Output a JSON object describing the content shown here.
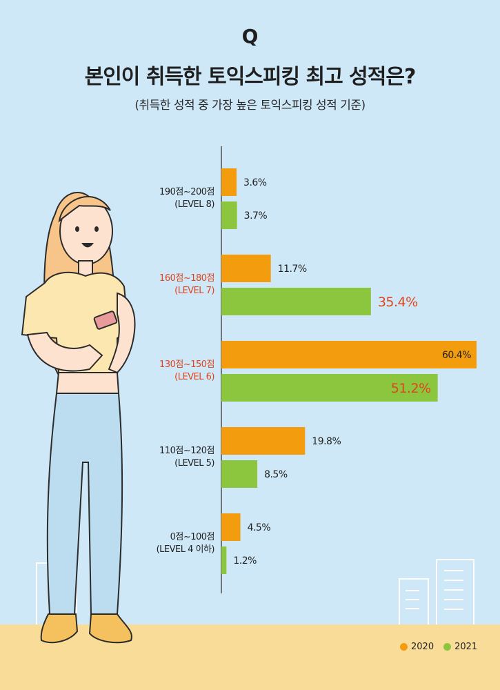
{
  "header": {
    "q_mark": "Q",
    "title": "본인이 취득한 토익스피킹 최고 성적은?",
    "subtitle": "(취득한 성적 중 가장 높은 토익스피킹 성적 기준)"
  },
  "colors": {
    "2020": "#f39c0e",
    "2021": "#8cc63f",
    "highlight_text": "#e0441c",
    "default_text": "#222222"
  },
  "legend": [
    {
      "label": "2020",
      "color": "#f39c0e"
    },
    {
      "label": "2021",
      "color": "#8cc63f"
    }
  ],
  "chart_data": {
    "type": "bar",
    "orientation": "horizontal",
    "categories": [
      {
        "line1": "190점~200점",
        "line2": "(LEVEL 8)",
        "highlight": false
      },
      {
        "line1": "160점~180점",
        "line2": "(LEVEL 7)",
        "highlight": true
      },
      {
        "line1": "130점~150점",
        "line2": "(LEVEL 6)",
        "highlight": true
      },
      {
        "line1": "110점~120점",
        "line2": "(LEVEL 5)",
        "highlight": false
      },
      {
        "line1": "0점~100점",
        "line2": "(LEVEL 4 이하)",
        "highlight": false
      }
    ],
    "series": [
      {
        "name": "2020",
        "values": [
          3.6,
          11.7,
          60.4,
          19.8,
          4.5
        ],
        "labels": [
          "3.6%",
          "11.7%",
          "60.4%",
          "19.8%",
          "4.5%"
        ],
        "label_style": [
          "normal",
          "normal",
          "inside",
          "normal",
          "normal"
        ]
      },
      {
        "name": "2021",
        "values": [
          3.7,
          35.4,
          51.2,
          8.5,
          1.2
        ],
        "labels": [
          "3.7%",
          "35.4%",
          "51.2%",
          "8.5%",
          "1.2%"
        ],
        "label_style": [
          "normal",
          "emphasis",
          "emphasis-inside",
          "normal",
          "normal"
        ]
      }
    ],
    "xlim": [
      0,
      60.4
    ],
    "grid": false,
    "legend_position": "bottom-right"
  }
}
